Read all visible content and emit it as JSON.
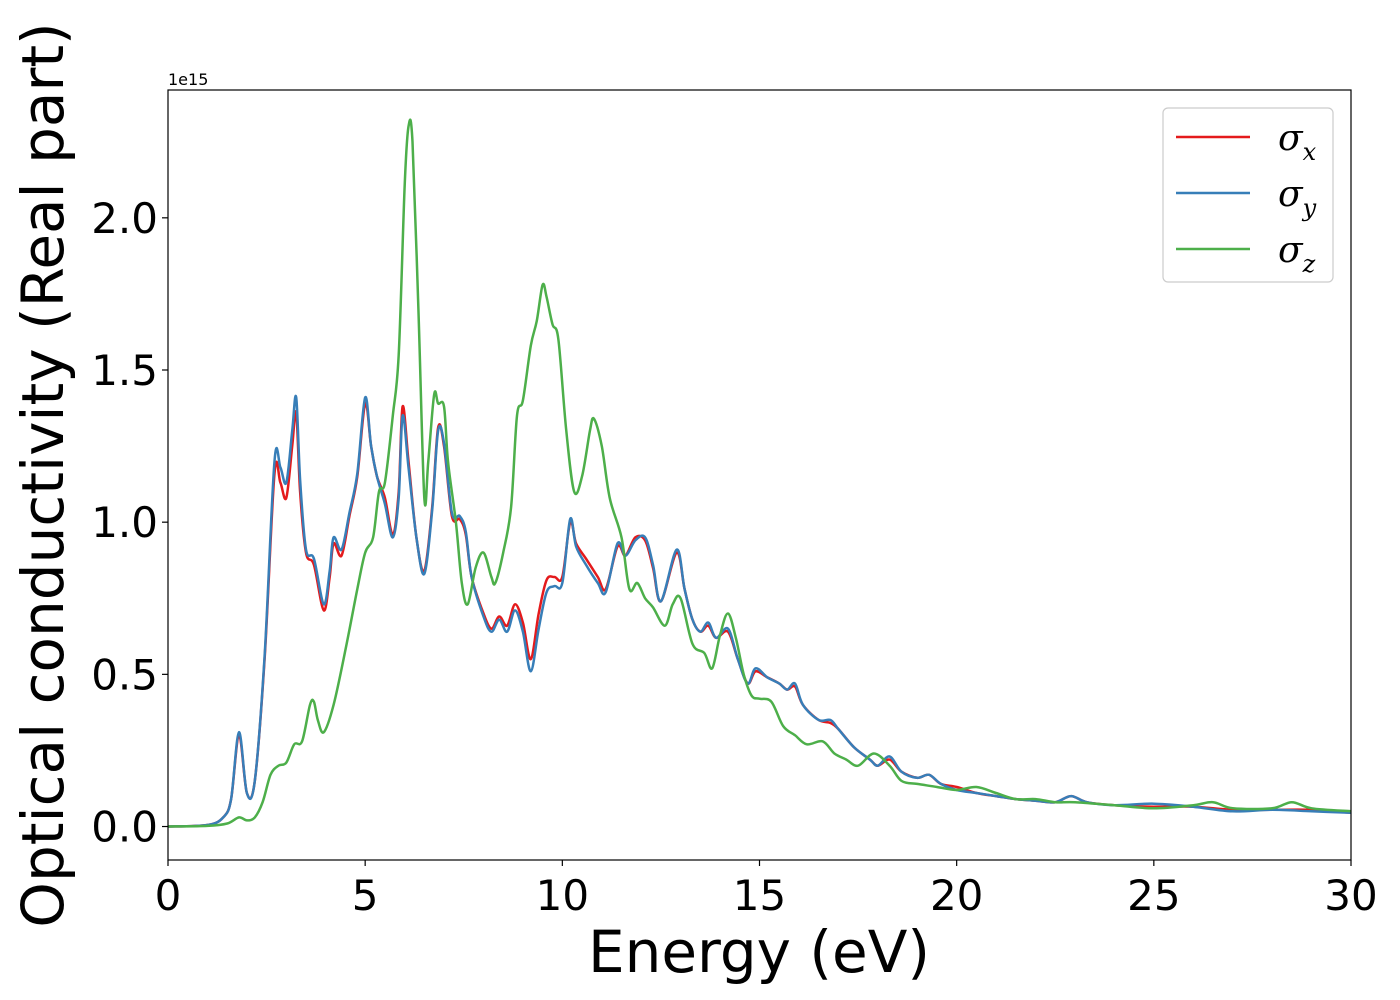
{
  "chart_data": {
    "type": "line",
    "title": "",
    "xlabel": "Energy (eV)",
    "ylabel": "Optical conductivity (Real part)",
    "y_offset_text": "1e15",
    "xlim": [
      0,
      30
    ],
    "ylim": [
      -0.11,
      2.42
    ],
    "y_multiplier": 1000000000000000.0,
    "x_ticks": [
      0,
      5,
      10,
      15,
      20,
      25,
      30
    ],
    "x_tick_labels": [
      "0",
      "5",
      "10",
      "15",
      "20",
      "25",
      "30"
    ],
    "y_ticks": [
      0.0,
      0.5,
      1.0,
      1.5,
      2.0
    ],
    "y_tick_labels": [
      "0.0",
      "0.5",
      "1.0",
      "1.5",
      "2.0"
    ],
    "grid": false,
    "legend_position": "top-right",
    "series": [
      {
        "name": "σx",
        "symbol": "σ",
        "sub": "x",
        "color": "#e41a1c",
        "points": [
          [
            0,
            0
          ],
          [
            1,
            0.005
          ],
          [
            1.4,
            0.03
          ],
          [
            1.6,
            0.09
          ],
          [
            1.8,
            0.3
          ],
          [
            2.0,
            0.11
          ],
          [
            2.2,
            0.15
          ],
          [
            2.45,
            0.55
          ],
          [
            2.7,
            1.16
          ],
          [
            2.85,
            1.13
          ],
          [
            3.0,
            1.08
          ],
          [
            3.15,
            1.25
          ],
          [
            3.25,
            1.36
          ],
          [
            3.35,
            1.1
          ],
          [
            3.5,
            0.9
          ],
          [
            3.7,
            0.86
          ],
          [
            3.95,
            0.71
          ],
          [
            4.1,
            0.82
          ],
          [
            4.2,
            0.93
          ],
          [
            4.4,
            0.89
          ],
          [
            4.6,
            1.02
          ],
          [
            4.8,
            1.15
          ],
          [
            5.0,
            1.39
          ],
          [
            5.15,
            1.25
          ],
          [
            5.3,
            1.15
          ],
          [
            5.5,
            1.08
          ],
          [
            5.7,
            0.96
          ],
          [
            5.85,
            1.1
          ],
          [
            5.95,
            1.38
          ],
          [
            6.1,
            1.2
          ],
          [
            6.3,
            0.95
          ],
          [
            6.5,
            0.84
          ],
          [
            6.7,
            1.05
          ],
          [
            6.85,
            1.31
          ],
          [
            7.0,
            1.25
          ],
          [
            7.2,
            1.02
          ],
          [
            7.4,
            1.01
          ],
          [
            7.55,
            0.96
          ],
          [
            7.7,
            0.82
          ],
          [
            8.0,
            0.7
          ],
          [
            8.2,
            0.65
          ],
          [
            8.4,
            0.69
          ],
          [
            8.6,
            0.66
          ],
          [
            8.8,
            0.73
          ],
          [
            9.0,
            0.67
          ],
          [
            9.2,
            0.55
          ],
          [
            9.4,
            0.7
          ],
          [
            9.6,
            0.81
          ],
          [
            9.8,
            0.82
          ],
          [
            10.0,
            0.82
          ],
          [
            10.2,
            1.0
          ],
          [
            10.35,
            0.93
          ],
          [
            10.6,
            0.88
          ],
          [
            10.9,
            0.82
          ],
          [
            11.1,
            0.78
          ],
          [
            11.4,
            0.92
          ],
          [
            11.6,
            0.89
          ],
          [
            11.85,
            0.95
          ],
          [
            12.1,
            0.94
          ],
          [
            12.3,
            0.85
          ],
          [
            12.5,
            0.74
          ],
          [
            12.9,
            0.9
          ],
          [
            13.1,
            0.78
          ],
          [
            13.3,
            0.68
          ],
          [
            13.5,
            0.64
          ],
          [
            13.7,
            0.66
          ],
          [
            13.9,
            0.62
          ],
          [
            14.2,
            0.64
          ],
          [
            14.45,
            0.55
          ],
          [
            14.7,
            0.47
          ],
          [
            14.9,
            0.51
          ],
          [
            15.2,
            0.49
          ],
          [
            15.5,
            0.47
          ],
          [
            15.7,
            0.45
          ],
          [
            15.9,
            0.46
          ],
          [
            16.1,
            0.4
          ],
          [
            16.5,
            0.35
          ],
          [
            16.8,
            0.34
          ],
          [
            17.0,
            0.32
          ],
          [
            17.4,
            0.26
          ],
          [
            17.8,
            0.22
          ],
          [
            18.0,
            0.2
          ],
          [
            18.3,
            0.22
          ],
          [
            18.6,
            0.18
          ],
          [
            19.0,
            0.16
          ],
          [
            19.3,
            0.17
          ],
          [
            19.6,
            0.14
          ],
          [
            20.0,
            0.13
          ],
          [
            20.5,
            0.11
          ],
          [
            21.0,
            0.1
          ],
          [
            21.5,
            0.09
          ],
          [
            22.0,
            0.085
          ],
          [
            22.5,
            0.08
          ],
          [
            22.9,
            0.1
          ],
          [
            23.3,
            0.08
          ],
          [
            24.0,
            0.07
          ],
          [
            25.0,
            0.065
          ],
          [
            26.0,
            0.065
          ],
          [
            27.0,
            0.055
          ],
          [
            28.0,
            0.055
          ],
          [
            29.0,
            0.055
          ],
          [
            30.0,
            0.045
          ]
        ]
      },
      {
        "name": "σy",
        "symbol": "σ",
        "sub": "y",
        "color": "#377eb8",
        "points": [
          [
            0,
            0
          ],
          [
            1,
            0.005
          ],
          [
            1.4,
            0.03
          ],
          [
            1.6,
            0.09
          ],
          [
            1.8,
            0.31
          ],
          [
            2.0,
            0.11
          ],
          [
            2.2,
            0.15
          ],
          [
            2.45,
            0.56
          ],
          [
            2.7,
            1.2
          ],
          [
            2.85,
            1.18
          ],
          [
            3.0,
            1.13
          ],
          [
            3.15,
            1.3
          ],
          [
            3.25,
            1.41
          ],
          [
            3.35,
            1.14
          ],
          [
            3.5,
            0.91
          ],
          [
            3.7,
            0.88
          ],
          [
            3.95,
            0.73
          ],
          [
            4.1,
            0.84
          ],
          [
            4.2,
            0.95
          ],
          [
            4.4,
            0.91
          ],
          [
            4.6,
            1.03
          ],
          [
            4.8,
            1.16
          ],
          [
            5.0,
            1.41
          ],
          [
            5.15,
            1.25
          ],
          [
            5.3,
            1.15
          ],
          [
            5.5,
            1.06
          ],
          [
            5.7,
            0.95
          ],
          [
            5.85,
            1.08
          ],
          [
            5.95,
            1.35
          ],
          [
            6.1,
            1.18
          ],
          [
            6.3,
            0.95
          ],
          [
            6.5,
            0.83
          ],
          [
            6.7,
            1.04
          ],
          [
            6.85,
            1.3
          ],
          [
            7.0,
            1.26
          ],
          [
            7.2,
            1.03
          ],
          [
            7.4,
            1.02
          ],
          [
            7.55,
            0.97
          ],
          [
            7.7,
            0.82
          ],
          [
            8.0,
            0.69
          ],
          [
            8.2,
            0.64
          ],
          [
            8.4,
            0.68
          ],
          [
            8.6,
            0.64
          ],
          [
            8.8,
            0.71
          ],
          [
            9.0,
            0.64
          ],
          [
            9.2,
            0.51
          ],
          [
            9.4,
            0.65
          ],
          [
            9.6,
            0.77
          ],
          [
            9.8,
            0.79
          ],
          [
            10.0,
            0.8
          ],
          [
            10.2,
            1.01
          ],
          [
            10.35,
            0.92
          ],
          [
            10.6,
            0.86
          ],
          [
            10.9,
            0.8
          ],
          [
            11.1,
            0.77
          ],
          [
            11.4,
            0.93
          ],
          [
            11.6,
            0.89
          ],
          [
            11.85,
            0.94
          ],
          [
            12.1,
            0.95
          ],
          [
            12.3,
            0.86
          ],
          [
            12.5,
            0.74
          ],
          [
            12.9,
            0.91
          ],
          [
            13.1,
            0.78
          ],
          [
            13.3,
            0.68
          ],
          [
            13.5,
            0.64
          ],
          [
            13.7,
            0.67
          ],
          [
            13.9,
            0.62
          ],
          [
            14.2,
            0.65
          ],
          [
            14.45,
            0.55
          ],
          [
            14.7,
            0.47
          ],
          [
            14.9,
            0.52
          ],
          [
            15.2,
            0.49
          ],
          [
            15.5,
            0.47
          ],
          [
            15.7,
            0.45
          ],
          [
            15.9,
            0.47
          ],
          [
            16.1,
            0.4
          ],
          [
            16.5,
            0.35
          ],
          [
            16.8,
            0.35
          ],
          [
            17.0,
            0.32
          ],
          [
            17.4,
            0.26
          ],
          [
            17.8,
            0.22
          ],
          [
            18.0,
            0.2
          ],
          [
            18.3,
            0.23
          ],
          [
            18.6,
            0.18
          ],
          [
            19.0,
            0.16
          ],
          [
            19.3,
            0.17
          ],
          [
            19.6,
            0.14
          ],
          [
            20.0,
            0.12
          ],
          [
            20.5,
            0.11
          ],
          [
            21.0,
            0.1
          ],
          [
            21.5,
            0.09
          ],
          [
            22.0,
            0.085
          ],
          [
            22.5,
            0.08
          ],
          [
            22.9,
            0.1
          ],
          [
            23.3,
            0.08
          ],
          [
            24.0,
            0.07
          ],
          [
            25.0,
            0.075
          ],
          [
            26.0,
            0.065
          ],
          [
            27.0,
            0.05
          ],
          [
            28.0,
            0.055
          ],
          [
            29.0,
            0.05
          ],
          [
            30.0,
            0.045
          ]
        ]
      },
      {
        "name": "σz",
        "symbol": "σ",
        "sub": "z",
        "color": "#4daf4a",
        "points": [
          [
            0,
            0
          ],
          [
            1,
            0.002
          ],
          [
            1.5,
            0.01
          ],
          [
            1.8,
            0.03
          ],
          [
            2.0,
            0.02
          ],
          [
            2.2,
            0.03
          ],
          [
            2.4,
            0.08
          ],
          [
            2.6,
            0.17
          ],
          [
            2.8,
            0.2
          ],
          [
            3.0,
            0.21
          ],
          [
            3.2,
            0.27
          ],
          [
            3.4,
            0.28
          ],
          [
            3.6,
            0.4
          ],
          [
            3.7,
            0.41
          ],
          [
            3.8,
            0.35
          ],
          [
            3.95,
            0.31
          ],
          [
            4.2,
            0.4
          ],
          [
            4.5,
            0.58
          ],
          [
            4.8,
            0.78
          ],
          [
            5.0,
            0.9
          ],
          [
            5.2,
            0.95
          ],
          [
            5.35,
            1.1
          ],
          [
            5.5,
            1.13
          ],
          [
            5.7,
            1.35
          ],
          [
            5.85,
            1.55
          ],
          [
            6.0,
            2.1
          ],
          [
            6.1,
            2.3
          ],
          [
            6.2,
            2.25
          ],
          [
            6.35,
            1.7
          ],
          [
            6.5,
            1.08
          ],
          [
            6.6,
            1.2
          ],
          [
            6.75,
            1.42
          ],
          [
            6.85,
            1.39
          ],
          [
            7.0,
            1.38
          ],
          [
            7.1,
            1.2
          ],
          [
            7.3,
            1.0
          ],
          [
            7.45,
            0.8
          ],
          [
            7.6,
            0.73
          ],
          [
            7.8,
            0.85
          ],
          [
            8.0,
            0.9
          ],
          [
            8.2,
            0.82
          ],
          [
            8.3,
            0.8
          ],
          [
            8.5,
            0.9
          ],
          [
            8.7,
            1.05
          ],
          [
            8.85,
            1.35
          ],
          [
            9.0,
            1.4
          ],
          [
            9.2,
            1.58
          ],
          [
            9.35,
            1.66
          ],
          [
            9.5,
            1.78
          ],
          [
            9.6,
            1.74
          ],
          [
            9.75,
            1.65
          ],
          [
            9.9,
            1.6
          ],
          [
            10.1,
            1.3
          ],
          [
            10.3,
            1.1
          ],
          [
            10.5,
            1.15
          ],
          [
            10.7,
            1.3
          ],
          [
            10.8,
            1.34
          ],
          [
            11.0,
            1.25
          ],
          [
            11.2,
            1.08
          ],
          [
            11.5,
            0.95
          ],
          [
            11.7,
            0.78
          ],
          [
            11.9,
            0.8
          ],
          [
            12.1,
            0.75
          ],
          [
            12.3,
            0.72
          ],
          [
            12.6,
            0.66
          ],
          [
            12.8,
            0.73
          ],
          [
            13.0,
            0.75
          ],
          [
            13.3,
            0.6
          ],
          [
            13.6,
            0.57
          ],
          [
            13.8,
            0.52
          ],
          [
            14.0,
            0.63
          ],
          [
            14.2,
            0.7
          ],
          [
            14.4,
            0.62
          ],
          [
            14.6,
            0.5
          ],
          [
            14.8,
            0.43
          ],
          [
            15.0,
            0.42
          ],
          [
            15.3,
            0.41
          ],
          [
            15.6,
            0.33
          ],
          [
            15.9,
            0.3
          ],
          [
            16.2,
            0.27
          ],
          [
            16.6,
            0.28
          ],
          [
            16.9,
            0.24
          ],
          [
            17.2,
            0.22
          ],
          [
            17.5,
            0.2
          ],
          [
            17.9,
            0.24
          ],
          [
            18.3,
            0.2
          ],
          [
            18.6,
            0.15
          ],
          [
            19.0,
            0.14
          ],
          [
            19.5,
            0.13
          ],
          [
            20.0,
            0.12
          ],
          [
            20.5,
            0.13
          ],
          [
            21.0,
            0.11
          ],
          [
            21.5,
            0.09
          ],
          [
            22.0,
            0.09
          ],
          [
            22.5,
            0.08
          ],
          [
            23.0,
            0.08
          ],
          [
            24.0,
            0.07
          ],
          [
            25.0,
            0.06
          ],
          [
            26.0,
            0.07
          ],
          [
            26.5,
            0.08
          ],
          [
            27.0,
            0.06
          ],
          [
            28.0,
            0.06
          ],
          [
            28.5,
            0.08
          ],
          [
            29.0,
            0.06
          ],
          [
            30.0,
            0.05
          ]
        ]
      }
    ]
  }
}
